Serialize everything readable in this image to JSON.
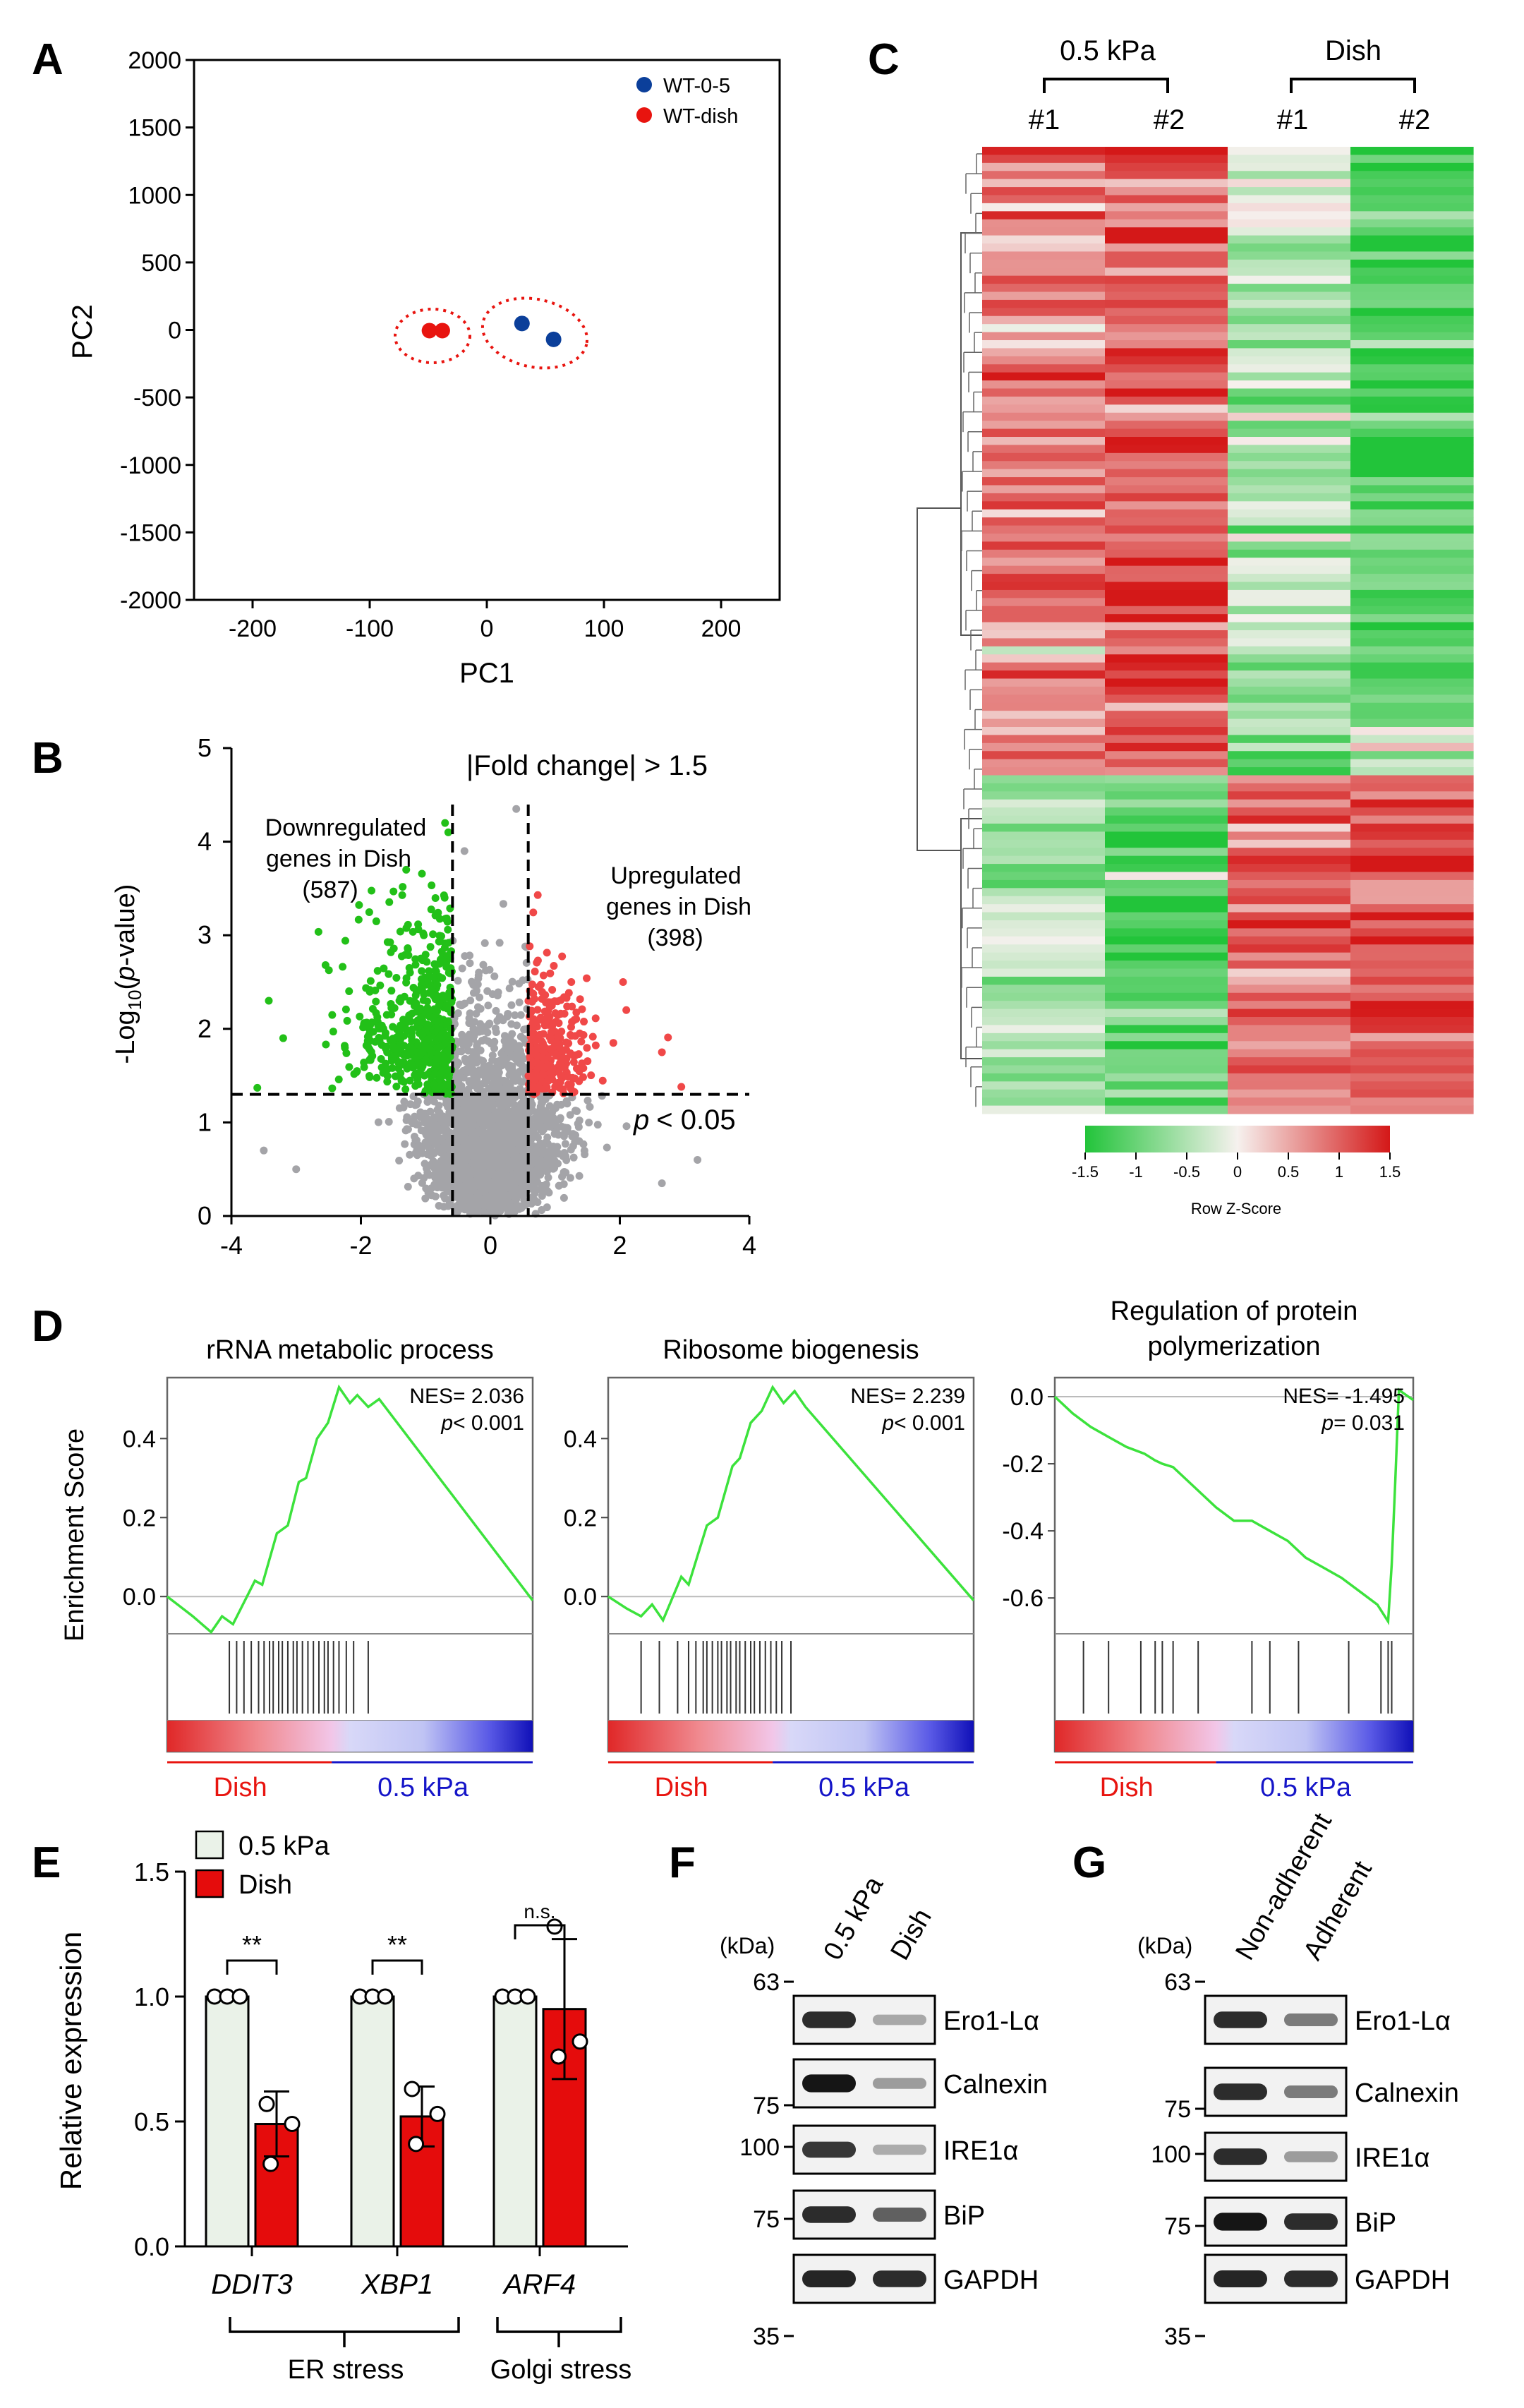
{
  "panels": {
    "A": "A",
    "B": "B",
    "C": "C",
    "D": "D",
    "E": "E",
    "F": "F",
    "G": "G"
  },
  "colors": {
    "red": "#e8140f",
    "green": "#22c018",
    "blue": "#0b3f9a",
    "grey": "#a4a4a8",
    "heat_green": "#22c43a",
    "heat_red": "#d9323a",
    "heat_white": "#f6f1ee",
    "gsea_line": "#3ce23c",
    "bar_red": "#e50c0c",
    "bar_light": "#eaf2e8"
  },
  "chart_data": [
    {
      "id": "A",
      "type": "scatter",
      "xlabel": "PC1",
      "ylabel": "PC2",
      "xlim": [
        -250,
        250
      ],
      "ylim": [
        -2000,
        2000
      ],
      "xticks": [
        "-200",
        "-100",
        "0",
        "100",
        "200"
      ],
      "xtick_values": [
        -200,
        -100,
        0,
        100,
        200
      ],
      "yticks": [
        "2000",
        "1500",
        "1000",
        "500",
        "0",
        "-500",
        "-1000",
        "-1500",
        "-2000"
      ],
      "ytick_values": [
        2000,
        1500,
        1000,
        500,
        0,
        -500,
        -1000,
        -1500,
        -2000
      ],
      "legend": [
        "WT-0-5",
        "WT-dish"
      ],
      "series": [
        {
          "name": "WT-0-5",
          "color": "#0b3f9a",
          "points": [
            [
              30,
              48
            ],
            [
              57,
              -70
            ]
          ]
        },
        {
          "name": "WT-dish",
          "color": "#e8140f",
          "points": [
            [
              -49,
              -5
            ],
            [
              -38,
              -5
            ]
          ]
        }
      ]
    },
    {
      "id": "B",
      "type": "scatter",
      "title": "|Fold change| > 1.5",
      "ylabel_parts": [
        "-Log",
        "10",
        "(",
        "p",
        "-value)"
      ],
      "xlim": [
        -4,
        4
      ],
      "ylim": [
        0,
        5
      ],
      "xticks": [
        "-4",
        "-2",
        "0",
        "2",
        "4"
      ],
      "xtick_values": [
        -4,
        -2,
        0,
        2,
        4
      ],
      "yticks": [
        "5",
        "4",
        "3",
        "2",
        "1",
        "0"
      ],
      "ytick_values": [
        5,
        4,
        3,
        2,
        1,
        0
      ],
      "thresholds": {
        "fold_change_log2": 0.585,
        "neg_log10_p": 1.3
      },
      "down_label": [
        "Downregulated",
        "genes in Dish",
        "(587)"
      ],
      "up_label": [
        "Upregulated",
        "genes in Dish",
        "(398)"
      ],
      "down_count": 587,
      "up_count": 398,
      "p_label_p": "p",
      "p_label_rest": "< 0.05"
    },
    {
      "id": "C",
      "type": "heatmap",
      "group_labels": [
        "0.5 kPa",
        "Dish"
      ],
      "columns": [
        "#1",
        "#2",
        "#1",
        "#2"
      ],
      "colorbar_ticks": [
        "-1.5",
        "-1",
        "-0.5",
        "0",
        "0.5",
        "1",
        "1.5"
      ],
      "colorbar_values": [
        -1.5,
        -1,
        -0.5,
        0,
        0.5,
        1,
        1.5
      ],
      "colorbar_label": "Row Z-Score"
    },
    {
      "id": "D1",
      "type": "line",
      "title_lines": [
        "rRNA metabolic process"
      ],
      "ylabel": "Enrichment Score",
      "yticks": [
        "0.4",
        "0.2",
        "0.0"
      ],
      "ytick_values": [
        0.4,
        0.2,
        0.0
      ],
      "ylim": [
        -0.08,
        0.54
      ],
      "nes_label": "NES= 2.036",
      "p_label": "p",
      "p_value": "< 0.001",
      "curve": [
        [
          0,
          0.0
        ],
        [
          0.07,
          -0.05
        ],
        [
          0.12,
          -0.09
        ],
        [
          0.15,
          -0.05
        ],
        [
          0.18,
          -0.07
        ],
        [
          0.24,
          0.04
        ],
        [
          0.26,
          0.03
        ],
        [
          0.3,
          0.16
        ],
        [
          0.33,
          0.18
        ],
        [
          0.36,
          0.29
        ],
        [
          0.38,
          0.3
        ],
        [
          0.41,
          0.4
        ],
        [
          0.44,
          0.44
        ],
        [
          0.47,
          0.53
        ],
        [
          0.5,
          0.49
        ],
        [
          0.52,
          0.51
        ],
        [
          0.55,
          0.48
        ],
        [
          0.58,
          0.5
        ],
        [
          1.0,
          -0.01
        ]
      ],
      "hits": [
        0.17,
        0.19,
        0.21,
        0.23,
        0.25,
        0.265,
        0.28,
        0.29,
        0.305,
        0.315,
        0.33,
        0.345,
        0.355,
        0.37,
        0.385,
        0.4,
        0.415,
        0.43,
        0.44,
        0.455,
        0.47,
        0.49,
        0.51,
        0.55
      ],
      "left_label": "Dish",
      "right_label": "0.5 kPa"
    },
    {
      "id": "D2",
      "type": "line",
      "title_lines": [
        "Ribosome biogenesis"
      ],
      "yticks": [
        "0.4",
        "0.2",
        "0.0"
      ],
      "ytick_values": [
        0.4,
        0.2,
        0.0
      ],
      "ylim": [
        -0.08,
        0.54
      ],
      "nes_label": "NES= 2.239",
      "p_label": "p",
      "p_value": "< 0.001",
      "curve": [
        [
          0,
          0.0
        ],
        [
          0.05,
          -0.03
        ],
        [
          0.09,
          -0.05
        ],
        [
          0.12,
          -0.02
        ],
        [
          0.15,
          -0.06
        ],
        [
          0.2,
          0.05
        ],
        [
          0.22,
          0.03
        ],
        [
          0.27,
          0.18
        ],
        [
          0.3,
          0.2
        ],
        [
          0.34,
          0.33
        ],
        [
          0.36,
          0.35
        ],
        [
          0.39,
          0.44
        ],
        [
          0.42,
          0.47
        ],
        [
          0.45,
          0.53
        ],
        [
          0.48,
          0.49
        ],
        [
          0.51,
          0.52
        ],
        [
          0.54,
          0.48
        ],
        [
          1.0,
          -0.01
        ]
      ],
      "hits": [
        0.09,
        0.14,
        0.19,
        0.22,
        0.24,
        0.26,
        0.27,
        0.285,
        0.3,
        0.31,
        0.325,
        0.335,
        0.35,
        0.36,
        0.375,
        0.39,
        0.4,
        0.415,
        0.43,
        0.445,
        0.46,
        0.475,
        0.5
      ],
      "left_label": "Dish",
      "right_label": "0.5 kPa"
    },
    {
      "id": "D3",
      "type": "line",
      "title_lines": [
        "Regulation of protein",
        "polymerization"
      ],
      "yticks": [
        "0.0",
        "-0.2",
        "-0.4",
        "-0.6"
      ],
      "ytick_values": [
        0.0,
        -0.2,
        -0.4,
        -0.6
      ],
      "ylim": [
        -0.69,
        0.04
      ],
      "nes_label": "NES= -1.495",
      "p_label": "p",
      "p_value": "= 0.031",
      "curve": [
        [
          0,
          0.0
        ],
        [
          0.05,
          -0.05
        ],
        [
          0.1,
          -0.09
        ],
        [
          0.15,
          -0.12
        ],
        [
          0.2,
          -0.15
        ],
        [
          0.25,
          -0.17
        ],
        [
          0.28,
          -0.19
        ],
        [
          0.3,
          -0.2
        ],
        [
          0.33,
          -0.21
        ],
        [
          0.36,
          -0.24
        ],
        [
          0.4,
          -0.28
        ],
        [
          0.45,
          -0.33
        ],
        [
          0.5,
          -0.37
        ],
        [
          0.55,
          -0.37
        ],
        [
          0.6,
          -0.4
        ],
        [
          0.65,
          -0.43
        ],
        [
          0.7,
          -0.48
        ],
        [
          0.75,
          -0.51
        ],
        [
          0.8,
          -0.54
        ],
        [
          0.85,
          -0.58
        ],
        [
          0.9,
          -0.62
        ],
        [
          0.93,
          -0.67
        ],
        [
          0.94,
          -0.5
        ],
        [
          0.95,
          -0.25
        ],
        [
          0.96,
          0.02
        ],
        [
          1.0,
          -0.01
        ]
      ],
      "hits": [
        0.08,
        0.15,
        0.24,
        0.28,
        0.3,
        0.33,
        0.4,
        0.55,
        0.6,
        0.68,
        0.82,
        0.91,
        0.93,
        0.94
      ],
      "left_label": "Dish",
      "right_label": "0.5 kPa"
    },
    {
      "id": "E",
      "type": "bar",
      "ylabel": "Relative expression",
      "ylim": [
        0,
        1.5
      ],
      "yticks": [
        "1.5",
        "1.0",
        "0.5",
        "0.0"
      ],
      "ytick_values": [
        1.5,
        1.0,
        0.5,
        0.0
      ],
      "legend": [
        "0.5 kPa",
        "Dish"
      ],
      "categories": [
        "DDIT3",
        "XBP1",
        "ARF4"
      ],
      "series": [
        {
          "name": "0.5 kPa",
          "values": [
            1.0,
            1.0,
            1.0
          ],
          "err": [
            0,
            0,
            0
          ],
          "points": [
            [
              1.0,
              1.0,
              1.0
            ],
            [
              1.0,
              1.0,
              1.0
            ],
            [
              1.0,
              1.0,
              1.0
            ]
          ]
        },
        {
          "name": "Dish",
          "values": [
            0.49,
            0.52,
            0.95
          ],
          "err": [
            0.13,
            0.12,
            0.28
          ],
          "points": [
            [
              0.57,
              0.49,
              0.33
            ],
            [
              0.63,
              0.53,
              0.41
            ],
            [
              1.28,
              0.82,
              0.76
            ]
          ]
        }
      ],
      "significance": [
        "**",
        "**",
        "n.s."
      ],
      "groups": [
        {
          "label": "ER stress"
        },
        {
          "label": "Golgi stress"
        }
      ]
    }
  ],
  "blots": {
    "F": {
      "columns": [
        "0.5 kPa",
        "Dish"
      ],
      "kda_label": "(kDa)",
      "markers": [
        "63",
        "75",
        "100",
        "75",
        "35"
      ],
      "bands": [
        "Ero1-Lα",
        "Calnexin",
        "IRE1α",
        "BiP",
        "GAPDH"
      ],
      "intensity": [
        [
          0.85,
          0.3
        ],
        [
          0.95,
          0.35
        ],
        [
          0.8,
          0.28
        ],
        [
          0.85,
          0.62
        ],
        [
          0.88,
          0.85
        ]
      ]
    },
    "G": {
      "columns": [
        "Non-adherent",
        "Adherent"
      ],
      "kda_label": "(kDa)",
      "markers": [
        "63",
        "75",
        "100",
        "75",
        "35"
      ],
      "bands": [
        "Ero1-Lα",
        "Calnexin",
        "IRE1α",
        "BiP",
        "GAPDH"
      ],
      "intensity": [
        [
          0.85,
          0.5
        ],
        [
          0.85,
          0.5
        ],
        [
          0.85,
          0.35
        ],
        [
          0.95,
          0.85
        ],
        [
          0.88,
          0.85
        ]
      ]
    }
  }
}
